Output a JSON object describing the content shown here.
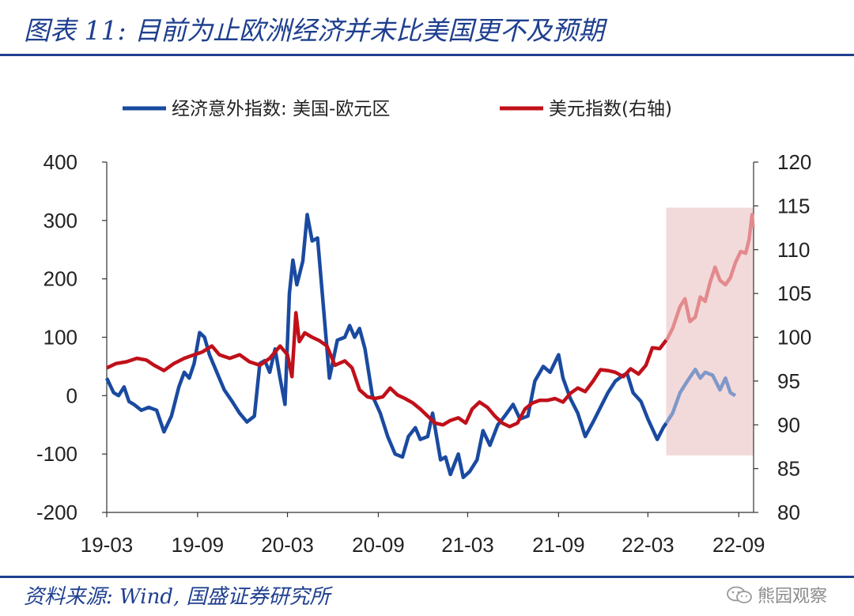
{
  "header": {
    "title": "图表 11:  目前为止欧洲经济并未比美国更不及预期"
  },
  "footer": {
    "source": "资料来源:  Wind,  国盛证券研究所",
    "watermark": "熊园观察"
  },
  "chart_data": {
    "type": "line",
    "x_ticks": [
      "19-03",
      "19-09",
      "20-03",
      "20-09",
      "21-03",
      "21-09",
      "22-03",
      "22-09"
    ],
    "ylim_left": [
      -200,
      400
    ],
    "yticks_left": [
      "400",
      "300",
      "200",
      "100",
      "0",
      "-100",
      "-200"
    ],
    "ylim_right": [
      80,
      120
    ],
    "yticks_right": [
      "120",
      "115",
      "110",
      "105",
      "100",
      "95",
      "90",
      "85",
      "80"
    ],
    "grid": false,
    "legend": {
      "placement": "top"
    },
    "highlight_region": {
      "from": "22-04",
      "to": "22-09",
      "color": "#f3dada"
    },
    "series": [
      {
        "name": "经济意外指数:  美国-欧元区",
        "axis": "left",
        "color": "#1a4aa0",
        "points": [
          [
            "2019-03-01",
            30
          ],
          [
            "2019-03-15",
            5
          ],
          [
            "2019-03-25",
            0
          ],
          [
            "2019-04-05",
            15
          ],
          [
            "2019-04-15",
            -10
          ],
          [
            "2019-04-25",
            -15
          ],
          [
            "2019-05-10",
            -25
          ],
          [
            "2019-05-25",
            -20
          ],
          [
            "2019-06-10",
            -25
          ],
          [
            "2019-06-25",
            -62
          ],
          [
            "2019-07-10",
            -35
          ],
          [
            "2019-07-25",
            15
          ],
          [
            "2019-08-05",
            40
          ],
          [
            "2019-08-15",
            30
          ],
          [
            "2019-08-25",
            55
          ],
          [
            "2019-09-05",
            108
          ],
          [
            "2019-09-15",
            100
          ],
          [
            "2019-09-25",
            70
          ],
          [
            "2019-10-10",
            40
          ],
          [
            "2019-10-25",
            10
          ],
          [
            "2019-11-10",
            -10
          ],
          [
            "2019-11-25",
            -30
          ],
          [
            "2019-12-10",
            -45
          ],
          [
            "2019-12-25",
            -35
          ],
          [
            "2020-01-05",
            55
          ],
          [
            "2020-01-15",
            60
          ],
          [
            "2020-01-25",
            40
          ],
          [
            "2020-02-05",
            80
          ],
          [
            "2020-02-15",
            30
          ],
          [
            "2020-02-25",
            -15
          ],
          [
            "2020-03-05",
            175
          ],
          [
            "2020-03-12",
            232
          ],
          [
            "2020-03-20",
            190
          ],
          [
            "2020-04-01",
            230
          ],
          [
            "2020-04-10",
            310
          ],
          [
            "2020-04-20",
            265
          ],
          [
            "2020-05-01",
            270
          ],
          [
            "2020-05-15",
            130
          ],
          [
            "2020-05-25",
            30
          ],
          [
            "2020-06-10",
            95
          ],
          [
            "2020-06-25",
            100
          ],
          [
            "2020-07-05",
            120
          ],
          [
            "2020-07-15",
            100
          ],
          [
            "2020-07-25",
            115
          ],
          [
            "2020-08-05",
            80
          ],
          [
            "2020-08-20",
            0
          ],
          [
            "2020-09-05",
            -30
          ],
          [
            "2020-09-20",
            -70
          ],
          [
            "2020-10-05",
            -100
          ],
          [
            "2020-10-20",
            -105
          ],
          [
            "2020-11-01",
            -70
          ],
          [
            "2020-11-15",
            -55
          ],
          [
            "2020-11-25",
            -75
          ],
          [
            "2020-12-10",
            -70
          ],
          [
            "2020-12-20",
            -30
          ],
          [
            "2021-01-05",
            -110
          ],
          [
            "2021-01-15",
            -105
          ],
          [
            "2021-01-25",
            -135
          ],
          [
            "2021-02-10",
            -100
          ],
          [
            "2021-02-20",
            -140
          ],
          [
            "2021-03-05",
            -130
          ],
          [
            "2021-03-20",
            -110
          ],
          [
            "2021-04-01",
            -60
          ],
          [
            "2021-04-15",
            -85
          ],
          [
            "2021-05-01",
            -50
          ],
          [
            "2021-05-15",
            -35
          ],
          [
            "2021-06-01",
            -15
          ],
          [
            "2021-06-15",
            -40
          ],
          [
            "2021-07-01",
            -35
          ],
          [
            "2021-07-15",
            25
          ],
          [
            "2021-08-01",
            50
          ],
          [
            "2021-08-15",
            40
          ],
          [
            "2021-09-01",
            70
          ],
          [
            "2021-09-10",
            30
          ],
          [
            "2021-09-25",
            -5
          ],
          [
            "2021-10-10",
            -30
          ],
          [
            "2021-10-25",
            -70
          ],
          [
            "2021-11-10",
            -45
          ],
          [
            "2021-11-25",
            -20
          ],
          [
            "2021-12-10",
            5
          ],
          [
            "2021-12-25",
            25
          ],
          [
            "2022-01-10",
            35
          ],
          [
            "2022-01-18",
            38
          ],
          [
            "2022-01-30",
            5
          ],
          [
            "2022-02-15",
            -10
          ],
          [
            "2022-03-01",
            -40
          ],
          [
            "2022-03-20",
            -75
          ],
          [
            "2022-04-01",
            -55
          ],
          [
            "2022-04-20",
            -30
          ],
          [
            "2022-05-05",
            5
          ],
          [
            "2022-05-20",
            25
          ],
          [
            "2022-06-05",
            45
          ],
          [
            "2022-06-15",
            30
          ],
          [
            "2022-06-25",
            40
          ],
          [
            "2022-07-10",
            35
          ],
          [
            "2022-07-25",
            10
          ],
          [
            "2022-08-05",
            30
          ],
          [
            "2022-08-15",
            5
          ],
          [
            "2022-08-25",
            0
          ]
        ]
      },
      {
        "name": "美元指数(右轴)",
        "axis": "right",
        "color": "#c0101a",
        "points": [
          [
            "2019-03-01",
            96.5
          ],
          [
            "2019-03-20",
            97
          ],
          [
            "2019-04-10",
            97.2
          ],
          [
            "2019-05-01",
            97.6
          ],
          [
            "2019-05-20",
            97.4
          ],
          [
            "2019-06-05",
            96.8
          ],
          [
            "2019-06-25",
            96.2
          ],
          [
            "2019-07-15",
            97.0
          ],
          [
            "2019-08-05",
            97.6
          ],
          [
            "2019-08-25",
            98.0
          ],
          [
            "2019-09-10",
            98.3
          ],
          [
            "2019-09-30",
            99.0
          ],
          [
            "2019-10-15",
            98.0
          ],
          [
            "2019-11-05",
            97.6
          ],
          [
            "2019-11-25",
            98.0
          ],
          [
            "2019-12-15",
            97.2
          ],
          [
            "2020-01-05",
            96.8
          ],
          [
            "2020-01-25",
            97.6
          ],
          [
            "2020-02-15",
            99.0
          ],
          [
            "2020-03-01",
            98.0
          ],
          [
            "2020-03-10",
            95.5
          ],
          [
            "2020-03-18",
            102.8
          ],
          [
            "2020-03-25",
            99.5
          ],
          [
            "2020-04-05",
            100.5
          ],
          [
            "2020-04-20",
            100.0
          ],
          [
            "2020-05-05",
            99.6
          ],
          [
            "2020-05-20",
            99.0
          ],
          [
            "2020-06-05",
            96.8
          ],
          [
            "2020-06-25",
            97.3
          ],
          [
            "2020-07-10",
            96.5
          ],
          [
            "2020-07-25",
            94.0
          ],
          [
            "2020-08-10",
            93.2
          ],
          [
            "2020-08-25",
            93.0
          ],
          [
            "2020-09-10",
            93.2
          ],
          [
            "2020-09-25",
            94.2
          ],
          [
            "2020-10-10",
            93.4
          ],
          [
            "2020-10-25",
            93.0
          ],
          [
            "2020-11-10",
            92.5
          ],
          [
            "2020-11-25",
            91.8
          ],
          [
            "2020-12-10",
            91.0
          ],
          [
            "2020-12-25",
            90.2
          ],
          [
            "2021-01-10",
            90.0
          ],
          [
            "2021-01-25",
            90.5
          ],
          [
            "2021-02-10",
            90.8
          ],
          [
            "2021-02-25",
            90.2
          ],
          [
            "2021-03-10",
            91.8
          ],
          [
            "2021-03-25",
            92.6
          ],
          [
            "2021-04-10",
            92.0
          ],
          [
            "2021-04-25",
            91.0
          ],
          [
            "2021-05-10",
            90.2
          ],
          [
            "2021-05-25",
            89.8
          ],
          [
            "2021-06-10",
            90.2
          ],
          [
            "2021-06-25",
            91.8
          ],
          [
            "2021-07-10",
            92.5
          ],
          [
            "2021-07-25",
            92.8
          ],
          [
            "2021-08-10",
            92.8
          ],
          [
            "2021-08-25",
            93.0
          ],
          [
            "2021-09-10",
            92.6
          ],
          [
            "2021-09-25",
            93.6
          ],
          [
            "2021-10-10",
            94.2
          ],
          [
            "2021-10-25",
            93.8
          ],
          [
            "2021-11-10",
            95.0
          ],
          [
            "2021-11-25",
            96.3
          ],
          [
            "2021-12-10",
            96.2
          ],
          [
            "2021-12-25",
            96.0
          ],
          [
            "2022-01-10",
            95.5
          ],
          [
            "2022-01-25",
            96.4
          ],
          [
            "2022-02-10",
            95.8
          ],
          [
            "2022-02-25",
            96.8
          ],
          [
            "2022-03-10",
            98.8
          ],
          [
            "2022-03-25",
            98.7
          ],
          [
            "2022-04-10",
            99.9
          ],
          [
            "2022-04-20",
            101.0
          ],
          [
            "2022-05-05",
            103.5
          ],
          [
            "2022-05-15",
            104.4
          ],
          [
            "2022-05-25",
            101.8
          ],
          [
            "2022-06-05",
            102.3
          ],
          [
            "2022-06-15",
            104.6
          ],
          [
            "2022-06-25",
            104.1
          ],
          [
            "2022-07-05",
            106.3
          ],
          [
            "2022-07-15",
            108.0
          ],
          [
            "2022-07-25",
            106.5
          ],
          [
            "2022-08-05",
            106.0
          ],
          [
            "2022-08-15",
            106.8
          ],
          [
            "2022-08-25",
            108.5
          ],
          [
            "2022-09-05",
            109.8
          ],
          [
            "2022-09-15",
            109.6
          ],
          [
            "2022-09-22",
            111.2
          ],
          [
            "2022-09-28",
            114.0
          ],
          [
            "2022-09-30",
            112.5
          ]
        ]
      }
    ]
  }
}
